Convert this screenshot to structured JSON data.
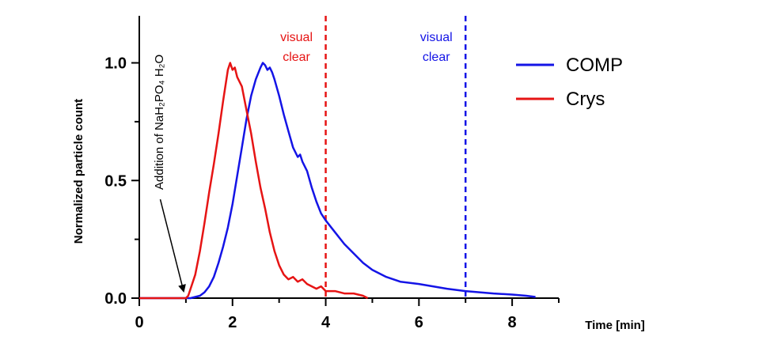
{
  "chart_data": {
    "type": "line",
    "xlabel": "Time [min]",
    "ylabel": "Normalized particle count",
    "xlim": [
      0,
      9
    ],
    "ylim": [
      0,
      1.2
    ],
    "x_ticks": [
      0,
      2,
      4,
      6,
      8
    ],
    "x_tick_labels": [
      "0",
      "2",
      "4",
      "6",
      "8"
    ],
    "y_ticks": [
      0,
      0.5,
      1.0
    ],
    "y_tick_labels": [
      "0.0",
      "0.5",
      "1.0"
    ],
    "grid": false,
    "legend_position": "top-right",
    "series": [
      {
        "name": "COMP",
        "color": "#1414e6",
        "points": [
          [
            0,
            0
          ],
          [
            1.0,
            0
          ],
          [
            1.1,
            0.0
          ],
          [
            1.2,
            0.005
          ],
          [
            1.3,
            0.01
          ],
          [
            1.4,
            0.025
          ],
          [
            1.5,
            0.05
          ],
          [
            1.6,
            0.09
          ],
          [
            1.7,
            0.15
          ],
          [
            1.8,
            0.22
          ],
          [
            1.9,
            0.3
          ],
          [
            2.0,
            0.4
          ],
          [
            2.1,
            0.52
          ],
          [
            2.2,
            0.64
          ],
          [
            2.3,
            0.76
          ],
          [
            2.4,
            0.86
          ],
          [
            2.5,
            0.93
          ],
          [
            2.6,
            0.98
          ],
          [
            2.65,
            1.0
          ],
          [
            2.7,
            0.99
          ],
          [
            2.75,
            0.97
          ],
          [
            2.8,
            0.98
          ],
          [
            2.85,
            0.96
          ],
          [
            2.9,
            0.93
          ],
          [
            3.0,
            0.86
          ],
          [
            3.1,
            0.78
          ],
          [
            3.2,
            0.71
          ],
          [
            3.3,
            0.64
          ],
          [
            3.4,
            0.6
          ],
          [
            3.45,
            0.61
          ],
          [
            3.5,
            0.58
          ],
          [
            3.6,
            0.54
          ],
          [
            3.7,
            0.47
          ],
          [
            3.8,
            0.41
          ],
          [
            3.9,
            0.36
          ],
          [
            4.0,
            0.33
          ],
          [
            4.2,
            0.28
          ],
          [
            4.4,
            0.23
          ],
          [
            4.6,
            0.19
          ],
          [
            4.8,
            0.15
          ],
          [
            5.0,
            0.12
          ],
          [
            5.3,
            0.09
          ],
          [
            5.6,
            0.07
          ],
          [
            6.0,
            0.06
          ],
          [
            6.3,
            0.05
          ],
          [
            6.6,
            0.04
          ],
          [
            7.0,
            0.03
          ],
          [
            7.3,
            0.025
          ],
          [
            7.6,
            0.02
          ],
          [
            8.0,
            0.015
          ],
          [
            8.3,
            0.01
          ],
          [
            8.5,
            0.005
          ]
        ]
      },
      {
        "name": "Crys",
        "color": "#e61414",
        "points": [
          [
            0,
            0
          ],
          [
            1.0,
            0
          ],
          [
            1.05,
            0.01
          ],
          [
            1.1,
            0.04
          ],
          [
            1.2,
            0.1
          ],
          [
            1.3,
            0.2
          ],
          [
            1.4,
            0.32
          ],
          [
            1.5,
            0.45
          ],
          [
            1.6,
            0.57
          ],
          [
            1.7,
            0.7
          ],
          [
            1.8,
            0.84
          ],
          [
            1.9,
            0.97
          ],
          [
            1.95,
            1.0
          ],
          [
            2.0,
            0.97
          ],
          [
            2.05,
            0.98
          ],
          [
            2.1,
            0.94
          ],
          [
            2.2,
            0.9
          ],
          [
            2.3,
            0.8
          ],
          [
            2.4,
            0.7
          ],
          [
            2.5,
            0.58
          ],
          [
            2.6,
            0.47
          ],
          [
            2.7,
            0.38
          ],
          [
            2.8,
            0.28
          ],
          [
            2.9,
            0.2
          ],
          [
            3.0,
            0.14
          ],
          [
            3.1,
            0.1
          ],
          [
            3.2,
            0.08
          ],
          [
            3.3,
            0.09
          ],
          [
            3.4,
            0.07
          ],
          [
            3.5,
            0.08
          ],
          [
            3.6,
            0.06
          ],
          [
            3.7,
            0.05
          ],
          [
            3.8,
            0.04
          ],
          [
            3.9,
            0.05
          ],
          [
            4.0,
            0.03
          ],
          [
            4.2,
            0.03
          ],
          [
            4.4,
            0.02
          ],
          [
            4.6,
            0.02
          ],
          [
            4.8,
            0.01
          ],
          [
            4.9,
            0.0
          ]
        ]
      }
    ],
    "vlines": [
      {
        "x": 4.0,
        "color": "#e61414",
        "label_line1": "visual",
        "label_line2": "clear"
      },
      {
        "x": 7.0,
        "color": "#1414e6",
        "label_line1": "visual",
        "label_line2": "clear"
      }
    ],
    "annotation": {
      "text": "Addition of NaH₂PO₄ H₂O",
      "arrow_from_x": 0.45,
      "arrow_from_y": 0.42,
      "arrow_to_x": 0.95,
      "arrow_to_y": 0.03
    }
  }
}
